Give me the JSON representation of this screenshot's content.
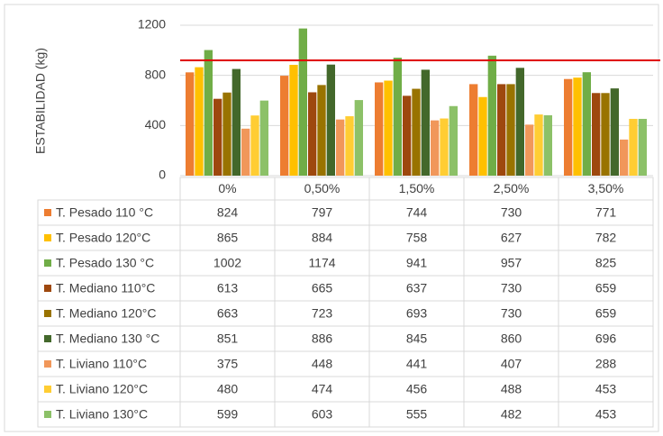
{
  "chart_data": {
    "type": "bar",
    "y_label": "ESTABILIDAD (kg)",
    "categories": [
      "0%",
      "0,50%",
      "1,50%",
      "2,50%",
      "3,50%"
    ],
    "series": [
      {
        "name": "T. Pesado 110 °C",
        "color": "#ed7d31",
        "values": [
          824,
          797,
          744,
          730,
          771
        ]
      },
      {
        "name": "T. Pesado 120°C",
        "color": "#ffc000",
        "values": [
          865,
          884,
          758,
          627,
          782
        ]
      },
      {
        "name": "T. Pesado 130 °C",
        "color": "#70ad47",
        "values": [
          1002,
          1174,
          941,
          957,
          825
        ]
      },
      {
        "name": "T. Mediano 110°C",
        "color": "#9e480e",
        "values": [
          613,
          665,
          637,
          730,
          659
        ]
      },
      {
        "name": "T. Mediano 120°C",
        "color": "#997300",
        "values": [
          663,
          723,
          693,
          730,
          659
        ]
      },
      {
        "name": "T. Mediano 130 °C",
        "color": "#43682b",
        "values": [
          851,
          886,
          845,
          860,
          696
        ]
      },
      {
        "name": "T. Liviano 110°C",
        "color": "#f1975a",
        "values": [
          375,
          448,
          441,
          407,
          288
        ]
      },
      {
        "name": "T. Liviano 120°C",
        "color": "#ffcd33",
        "values": [
          480,
          474,
          456,
          488,
          453
        ]
      },
      {
        "name": "T. Liviano 130°C",
        "color": "#8cc168",
        "values": [
          599,
          603,
          555,
          482,
          453
        ]
      }
    ],
    "ylim": [
      0,
      1200
    ],
    "yticks": [
      0,
      400,
      800,
      1200
    ],
    "grid": true,
    "reference_line": {
      "value": 920,
      "color": "#e00000"
    }
  }
}
